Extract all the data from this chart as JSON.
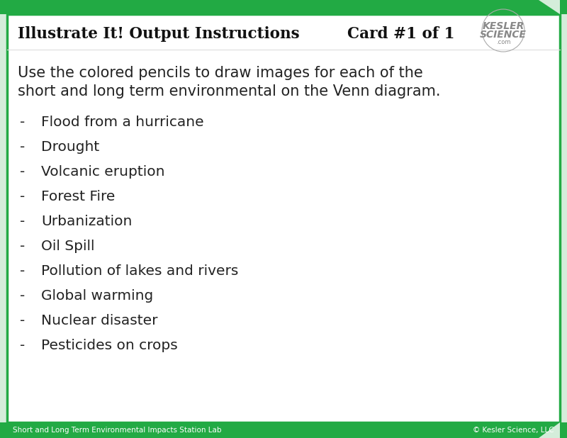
{
  "title": "Illustrate It! Output Instructions",
  "card_label": "Card #1 of 1",
  "outer_bg": "#d4edda",
  "card_bg": "#ffffff",
  "border_color": "#22aa44",
  "bar_color": "#22aa44",
  "body_text_line1": "Use the colored pencils to draw images for each of the",
  "body_text_line2": "short and long term environmental on the Venn diagram.",
  "bullet_items": [
    "Flood from a hurricane",
    "Drought",
    "Volcanic eruption",
    "Forest Fire",
    "Urbanization",
    "Oil Spill",
    "Pollution of lakes and rivers",
    "Global warming",
    "Nuclear disaster",
    "Pesticides on crops"
  ],
  "footer_left": "Short and Long Term Environmental Impacts Station Lab",
  "footer_right": "© Kesler Science, LLC",
  "kesler_line1": "KESLER",
  "kesler_line2": "SCIENCE",
  "kesler_line3": ".com",
  "title_fontsize": 15.5,
  "card_fontsize": 15.5,
  "body_fontsize": 15,
  "bullet_fontsize": 14.5,
  "footer_fontsize": 7.5,
  "kesler_fontsize": 10
}
